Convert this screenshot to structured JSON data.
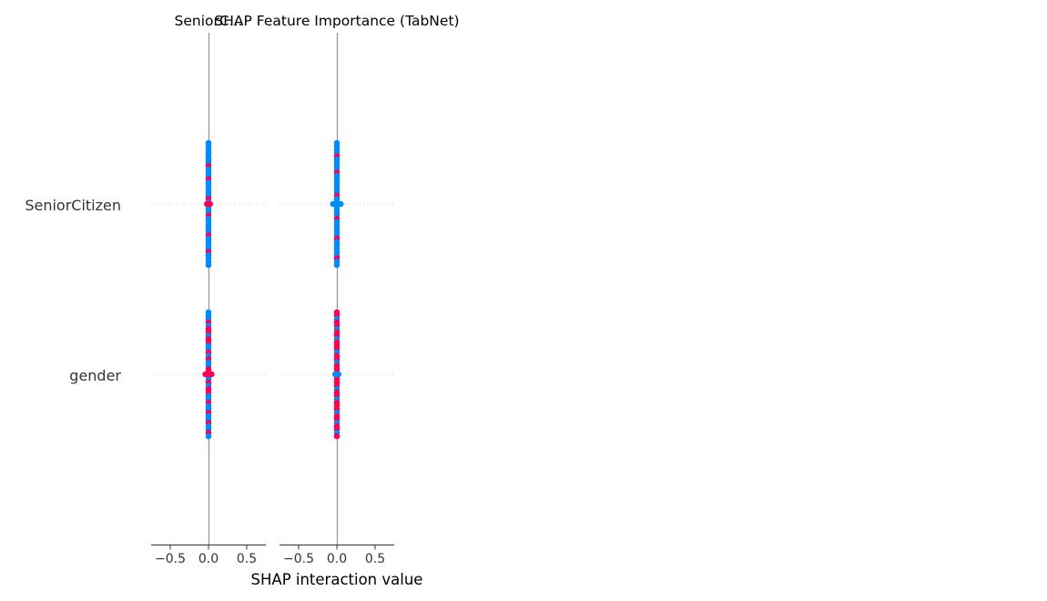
{
  "chart_data": {
    "type": "scatter",
    "title": "SHAP Feature Importance (TabNet)",
    "xlabel": "SHAP interaction value",
    "xlim": [
      -0.75,
      0.75
    ],
    "x_ticks": [
      -0.5,
      0.0,
      0.5
    ],
    "x_tick_labels": [
      "−0.5",
      "0.0",
      "0.5"
    ],
    "grid": false,
    "features": [
      "SeniorCitizen",
      "gender"
    ],
    "colors": {
      "high": "#ff0052",
      "low": "#008bfb"
    },
    "panels": [
      {
        "title": "SeniorC...",
        "series": [
          {
            "feature": "SeniorCitizen",
            "x": [
              0.0,
              0.0,
              0.0,
              0.0,
              0.0,
              0.0,
              0.0,
              0.0,
              0.0,
              0.0,
              0.0,
              0.0,
              0.0,
              0.0,
              0.0,
              0.0,
              0.0,
              0.0,
              0.0,
              0.0,
              0.0,
              0.0,
              0.0,
              0.0,
              0.0,
              0.0,
              0.0,
              0.0,
              0.0,
              0.0,
              0.0,
              0.0,
              0.0,
              0.0,
              0.0,
              0.0,
              0.0,
              0.0,
              -0.02,
              0.02
            ],
            "color": [
              "low",
              "low",
              "low",
              "low",
              "low",
              "low",
              "low",
              "high",
              "low",
              "low",
              "low",
              "high",
              "low",
              "low",
              "low",
              "low",
              "low",
              "high",
              "low",
              "low",
              "low",
              "low",
              "high",
              "low",
              "low",
              "low",
              "low",
              "low",
              "high",
              "low",
              "low",
              "low",
              "low",
              "high",
              "low",
              "low",
              "low",
              "low",
              "high",
              "high"
            ]
          },
          {
            "feature": "gender",
            "x": [
              0.0,
              0.0,
              0.0,
              0.0,
              0.0,
              0.0,
              0.0,
              0.0,
              0.0,
              0.0,
              0.0,
              0.0,
              0.0,
              0.0,
              0.0,
              0.0,
              0.0,
              0.0,
              0.0,
              0.0,
              0.0,
              0.0,
              0.0,
              0.0,
              0.0,
              0.0,
              0.0,
              0.0,
              0.0,
              0.0,
              0.0,
              0.0,
              0.0,
              0.0,
              0.0,
              0.0,
              0.0,
              0.0,
              -0.04,
              -0.02,
              0.02,
              0.04
            ],
            "color": [
              "low",
              "low",
              "low",
              "high",
              "low",
              "high",
              "high",
              "low",
              "high",
              "high",
              "low",
              "low",
              "high",
              "low",
              "high",
              "low",
              "low",
              "high",
              "high",
              "low",
              "low",
              "high",
              "low",
              "high",
              "high",
              "low",
              "low",
              "high",
              "low",
              "low",
              "high",
              "low",
              "low",
              "high",
              "low",
              "low",
              "high",
              "low",
              "high",
              "high",
              "high",
              "high"
            ]
          }
        ]
      },
      {
        "title": "SHAP Feature Importance (TabNet)",
        "series": [
          {
            "feature": "SeniorCitizen",
            "x": [
              0.0,
              0.0,
              0.0,
              0.0,
              0.0,
              0.0,
              0.0,
              0.0,
              0.0,
              0.0,
              0.0,
              0.0,
              0.0,
              0.0,
              0.0,
              0.0,
              0.0,
              0.0,
              0.0,
              0.0,
              0.0,
              0.0,
              0.0,
              0.0,
              0.0,
              0.0,
              0.0,
              0.0,
              0.0,
              0.0,
              0.0,
              0.0,
              0.0,
              0.0,
              0.0,
              0.0,
              0.0,
              0.0,
              -0.05,
              -0.025,
              0.025,
              0.05
            ],
            "color": [
              "low",
              "low",
              "low",
              "low",
              "high",
              "low",
              "low",
              "low",
              "low",
              "high",
              "low",
              "low",
              "low",
              "low",
              "low",
              "low",
              "high",
              "low",
              "low",
              "low",
              "low",
              "low",
              "low",
              "high",
              "low",
              "low",
              "low",
              "low",
              "low",
              "high",
              "low",
              "low",
              "low",
              "low",
              "low",
              "high",
              "low",
              "low",
              "low",
              "low",
              "low",
              "low"
            ]
          },
          {
            "feature": "gender",
            "x": [
              0.0,
              0.0,
              0.0,
              0.0,
              0.0,
              0.0,
              0.0,
              0.0,
              0.0,
              0.0,
              0.0,
              0.0,
              0.0,
              0.0,
              0.0,
              0.0,
              0.0,
              0.0,
              0.0,
              0.0,
              0.0,
              0.0,
              0.0,
              0.0,
              0.0,
              0.0,
              0.0,
              0.0,
              0.0,
              0.0,
              0.0,
              0.0,
              0.0,
              0.0,
              0.0,
              0.0,
              0.0,
              0.0,
              -0.02,
              0.02
            ],
            "color": [
              "high",
              "high",
              "low",
              "high",
              "high",
              "low",
              "high",
              "high",
              "low",
              "high",
              "high",
              "high",
              "low",
              "high",
              "high",
              "low",
              "high",
              "high",
              "high",
              "low",
              "high",
              "high",
              "high",
              "low",
              "high",
              "high",
              "low",
              "high",
              "high",
              "high",
              "low",
              "high",
              "high",
              "low",
              "high",
              "high",
              "low",
              "high",
              "low",
              "low"
            ]
          }
        ]
      }
    ]
  }
}
